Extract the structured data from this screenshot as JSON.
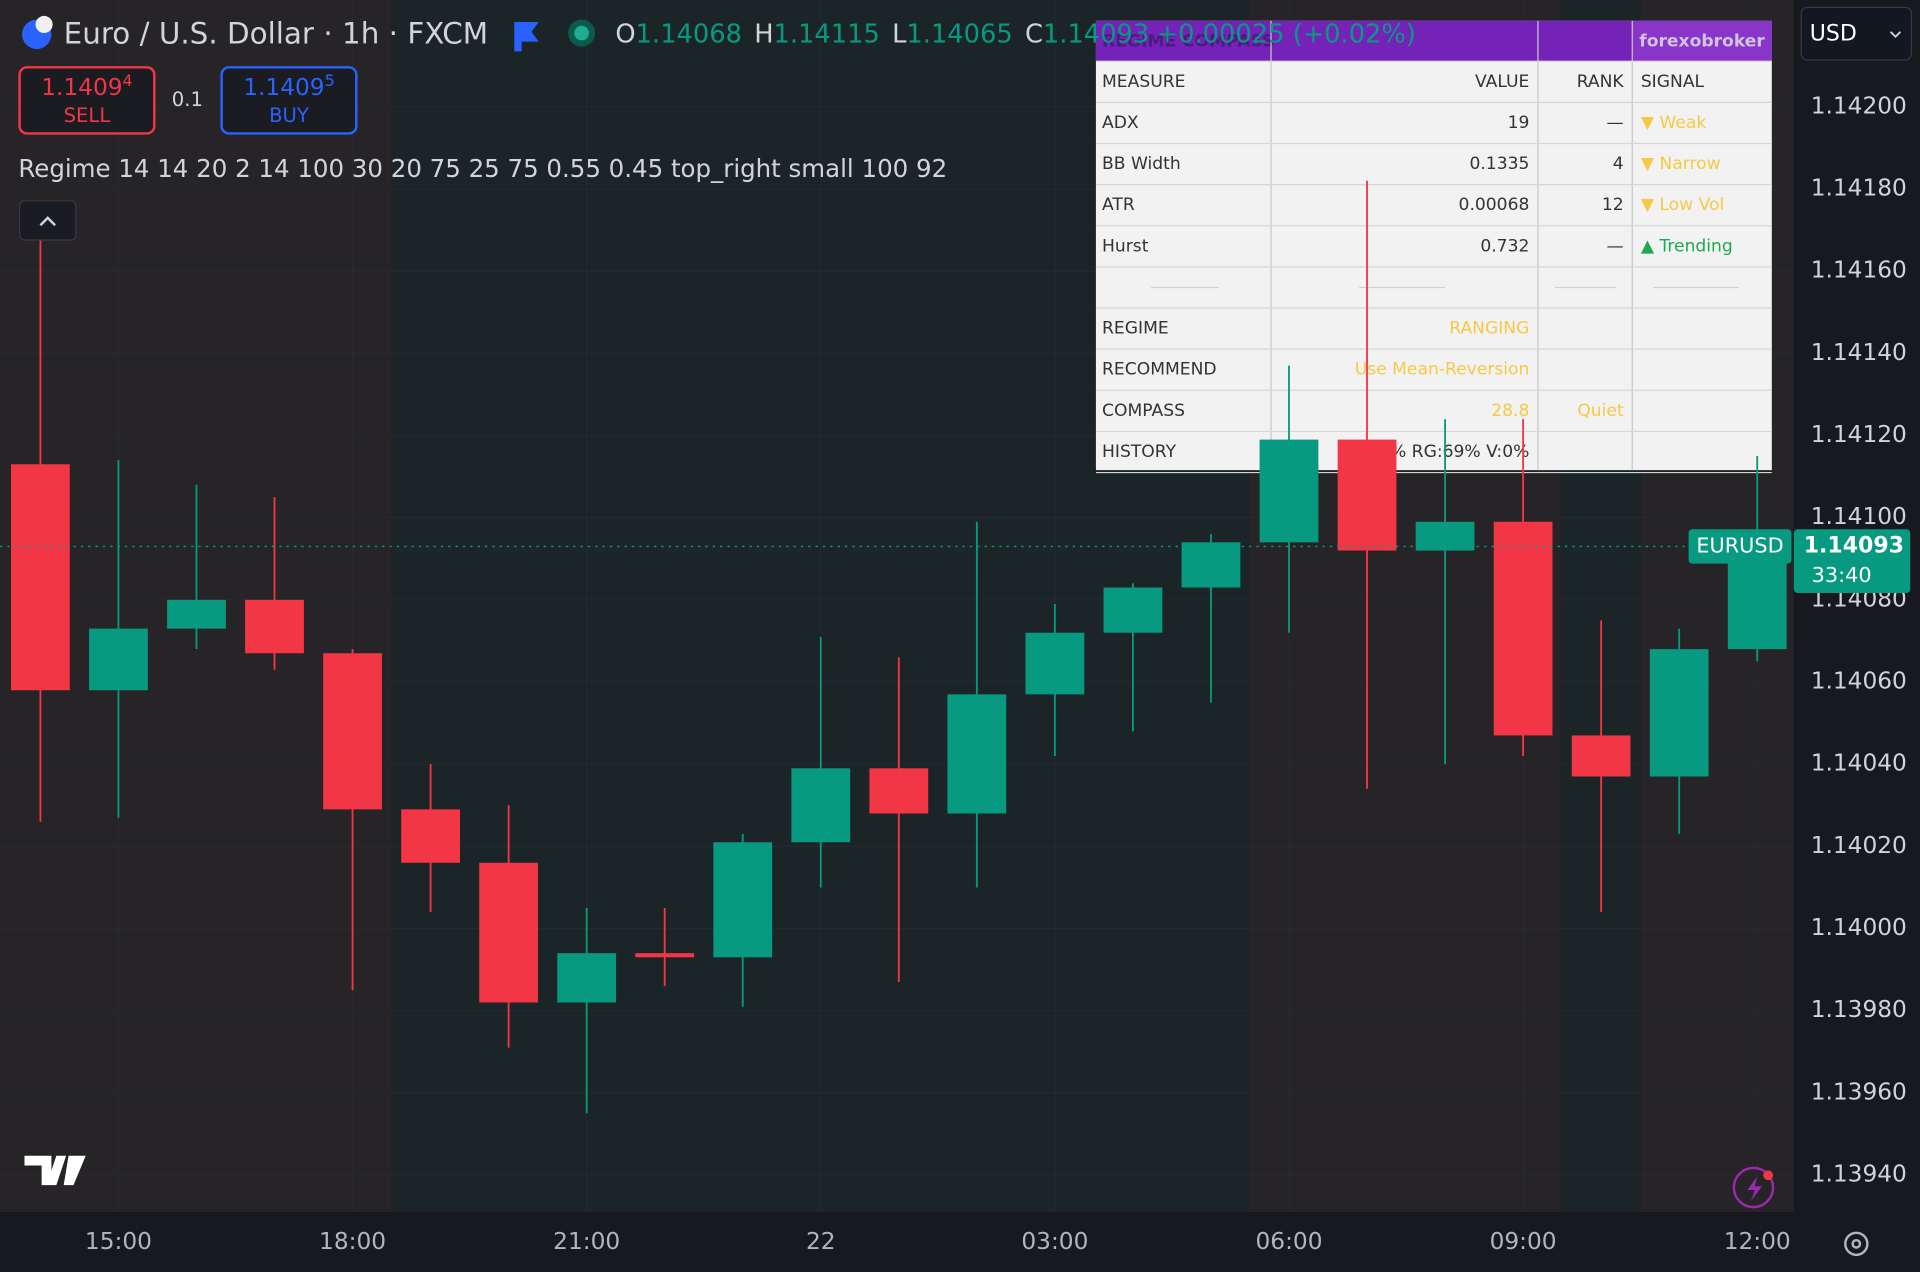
{
  "header": {
    "symbol": "Euro / U.S. Dollar · 1h · FXCM",
    "ohlc": [
      {
        "label": "O",
        "value": "1.14068"
      },
      {
        "label": "H",
        "value": "1.14115"
      },
      {
        "label": "L",
        "value": "1.14065"
      },
      {
        "label": "C",
        "value": "1.14093"
      }
    ],
    "change": "+0.00025 (+0.02%)"
  },
  "trade": {
    "sell_price": "1.1409",
    "sell_pip": "4",
    "sell": "SELL",
    "qty": "0.1",
    "buy_price": "1.1409",
    "buy_pip": "5",
    "buy": "BUY"
  },
  "indicator_line": "Regime 14 14 20 2 14 100 30 20 75 25 75 0.55 0.45 top_right small 100 92",
  "currency": "USD",
  "table": {
    "title": "REGIME COMPASS",
    "brand": "forexobroker",
    "columns": [
      "MEASURE",
      "VALUE",
      "RANK",
      "SIGNAL"
    ],
    "rows": [
      {
        "measure": "ADX",
        "value": "19",
        "rank": "—",
        "signal": "▼ Weak",
        "color": "#f6c945"
      },
      {
        "measure": "BB Width",
        "value": "0.1335",
        "rank": "4",
        "signal": "▼ Narrow",
        "color": "#f6c945"
      },
      {
        "measure": "ATR",
        "value": "0.00068",
        "rank": "12",
        "signal": "▼ Low Vol",
        "color": "#f6c945"
      },
      {
        "measure": "Hurst",
        "value": "0.732",
        "rank": "—",
        "signal": "▲ Trending",
        "color": "#1fa84f"
      },
      {
        "measure": "REGIME",
        "value": "RANGING",
        "color": "#f6c945"
      },
      {
        "measure": "RECOMMEND",
        "value": "Use Mean-Reversion",
        "color": "#f6c945"
      },
      {
        "measure": "COMPASS",
        "value": "28.8",
        "rank": "Quiet",
        "color": "#f6c945"
      },
      {
        "measure": "HISTORY",
        "value": "% RG:69% V:0%"
      }
    ]
  },
  "chart_data": {
    "type": "candlestick",
    "categories": [
      null,
      "15:00",
      null,
      null,
      "18:00",
      null,
      null,
      "21:00",
      null,
      null,
      "22",
      null,
      null,
      "03:00",
      null,
      null,
      "06:00",
      null,
      null,
      "09:00",
      null,
      null,
      "12:00"
    ],
    "open": [
      1.14113,
      1.14058,
      1.14073,
      1.1408,
      1.14067,
      1.14029,
      1.14016,
      1.13982,
      1.13994,
      1.13993,
      1.14021,
      1.14039,
      1.14028,
      1.14057,
      1.14072,
      1.14083,
      1.14094,
      1.14119,
      1.14092,
      1.14099,
      1.14047,
      1.14037,
      1.14068
    ],
    "high": [
      1.14171,
      1.14114,
      1.14108,
      1.14105,
      1.14068,
      1.1404,
      1.1403,
      1.14005,
      1.14005,
      1.14023,
      1.14071,
      1.14066,
      1.14099,
      1.14079,
      1.14084,
      1.14096,
      1.14137,
      1.14182,
      1.14124,
      1.14124,
      1.14075,
      1.14073,
      1.14115
    ],
    "low": [
      1.14026,
      1.14027,
      1.14068,
      1.14063,
      1.13985,
      1.14004,
      1.13971,
      1.13955,
      1.13986,
      1.13981,
      1.1401,
      1.13987,
      1.1401,
      1.14042,
      1.14048,
      1.14055,
      1.14072,
      1.14034,
      1.1404,
      1.14042,
      1.14004,
      1.14023,
      1.14065
    ],
    "close": [
      1.14058,
      1.14073,
      1.1408,
      1.14067,
      1.14029,
      1.14016,
      1.13982,
      1.13994,
      1.13993,
      1.14021,
      1.14039,
      1.14028,
      1.14057,
      1.14072,
      1.14083,
      1.14094,
      1.14119,
      1.14092,
      1.14099,
      1.14047,
      1.14037,
      1.14068,
      1.14093
    ],
    "up_color": "#089981",
    "down_color": "#f23645",
    "ylim": [
      1.13931,
      1.14226
    ],
    "yticks": [
      {
        "value": 1.142,
        "label": "1.14200"
      },
      {
        "value": 1.1418,
        "label": "1.14180"
      },
      {
        "value": 1.1416,
        "label": "1.14160"
      },
      {
        "value": 1.1414,
        "label": "1.14140"
      },
      {
        "value": 1.1412,
        "label": "1.14120"
      },
      {
        "value": 1.141,
        "label": "1.14100"
      },
      {
        "value": 1.1408,
        "label": "1.14080"
      },
      {
        "value": 1.1406,
        "label": "1.14060"
      },
      {
        "value": 1.1404,
        "label": "1.14040"
      },
      {
        "value": 1.1402,
        "label": "1.14020"
      },
      {
        "value": 1.14,
        "label": "1.14000"
      },
      {
        "value": 1.1398,
        "label": "1.13980"
      },
      {
        "value": 1.1396,
        "label": "1.13960"
      },
      {
        "value": 1.1394,
        "label": "1.13940"
      }
    ],
    "grid": true,
    "last_label": {
      "symbol": "EURUSD",
      "price": "1.14093",
      "countdown": "33:40"
    }
  }
}
